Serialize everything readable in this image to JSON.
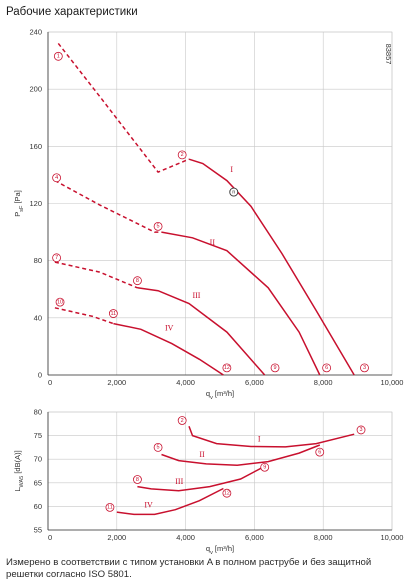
{
  "title": "Рабочие характеристики",
  "footnote": "Измерено в соответствии с типом установки A в полном раструбе и без защитной решетки согласно ISO 5801.",
  "image_code": "83857",
  "colors": {
    "curve": "#c8102e",
    "grid": "#c8c8c8",
    "axis": "#333333"
  },
  "chart_data": [
    {
      "type": "line",
      "title": "",
      "ylabel": "P_sF [Pa]",
      "xlabel": "q_v [m³/h]",
      "xlim": [
        0,
        10000
      ],
      "ylim": [
        0,
        240
      ],
      "x_ticks": [
        "0",
        "2,000",
        "4,000",
        "6,000",
        "8,000",
        "10,000"
      ],
      "y_ticks": [
        "0",
        "40",
        "80",
        "120",
        "160",
        "200",
        "240"
      ],
      "grid": true,
      "series": [
        {
          "name": "I",
          "segments": [
            {
              "style": "dashed",
              "points": [
                [
                  300,
                  232
                ],
                [
                  1500,
                  195
                ],
                [
                  3200,
                  142
                ],
                [
                  3700,
                  147
                ],
                [
                  4100,
                  151
                ]
              ]
            },
            {
              "style": "solid",
              "points": [
                [
                  4100,
                  151
                ],
                [
                  4500,
                  148
                ],
                [
                  5200,
                  136
                ],
                [
                  5900,
                  118
                ],
                [
                  6800,
                  85
                ],
                [
                  7800,
                  45
                ],
                [
                  8900,
                  0
                ]
              ]
            }
          ]
        },
        {
          "name": "II",
          "segments": [
            {
              "style": "dashed",
              "points": [
                [
                  200,
                  136
                ],
                [
                  1500,
                  119
                ],
                [
                  3100,
                  100
                ],
                [
                  3300,
                  100
                ]
              ]
            },
            {
              "style": "solid",
              "points": [
                [
                  3300,
                  100
                ],
                [
                  4200,
                  96
                ],
                [
                  5200,
                  87
                ],
                [
                  6400,
                  61
                ],
                [
                  7300,
                  30
                ],
                [
                  7900,
                  0
                ]
              ]
            }
          ]
        },
        {
          "name": "III",
          "segments": [
            {
              "style": "dashed",
              "points": [
                [
                  200,
                  79
                ],
                [
                  1500,
                  72
                ],
                [
                  2500,
                  62
                ],
                [
                  2600,
                  61
                ]
              ]
            },
            {
              "style": "solid",
              "points": [
                [
                  2600,
                  61
                ],
                [
                  3200,
                  59
                ],
                [
                  4100,
                  50
                ],
                [
                  5200,
                  30
                ],
                [
                  6300,
                  0
                ]
              ]
            }
          ]
        },
        {
          "name": "IV",
          "segments": [
            {
              "style": "dashed",
              "points": [
                [
                  200,
                  47
                ],
                [
                  1300,
                  41
                ],
                [
                  1900,
                  36
                ]
              ]
            },
            {
              "style": "solid",
              "points": [
                [
                  1900,
                  36
                ],
                [
                  2700,
                  32
                ],
                [
                  3600,
                  22
                ],
                [
                  4400,
                  11
                ],
                [
                  5100,
                  0
                ]
              ]
            }
          ]
        }
      ],
      "roman_labels": [
        {
          "text": "I",
          "x": 5300,
          "y": 142
        },
        {
          "text": "II",
          "x": 4700,
          "y": 91
        },
        {
          "text": "III",
          "x": 4200,
          "y": 54
        },
        {
          "text": "IV",
          "x": 3400,
          "y": 31
        }
      ],
      "markers": [
        {
          "label": "1",
          "x": 300,
          "y": 223
        },
        {
          "label": "2",
          "x": 3900,
          "y": 154
        },
        {
          "label": "3",
          "x": 9200,
          "y": 5
        },
        {
          "label": "4",
          "x": 250,
          "y": 138
        },
        {
          "label": "5",
          "x": 3200,
          "y": 104
        },
        {
          "label": "6",
          "x": 8100,
          "y": 5
        },
        {
          "label": "7",
          "x": 250,
          "y": 82
        },
        {
          "label": "8",
          "x": 2600,
          "y": 66
        },
        {
          "label": "9",
          "x": 6600,
          "y": 5
        },
        {
          "label": "10",
          "x": 350,
          "y": 51
        },
        {
          "label": "11",
          "x": 1900,
          "y": 43
        },
        {
          "label": "12",
          "x": 5200,
          "y": 5
        }
      ],
      "operating_point": {
        "label": "n",
        "x": 5400,
        "y": 128
      }
    },
    {
      "type": "line",
      "title": "",
      "ylabel": "L_WA5 [dB(A)]",
      "xlabel": "q_v [m³/h]",
      "xlim": [
        0,
        10000
      ],
      "ylim": [
        55,
        80
      ],
      "x_ticks": [
        "0",
        "2,000",
        "4,000",
        "6,000",
        "8,000",
        "10,000"
      ],
      "y_ticks": [
        "55",
        "60",
        "65",
        "70",
        "75",
        "80"
      ],
      "grid": true,
      "series": [
        {
          "name": "I",
          "points": [
            [
              4100,
              77
            ],
            [
              4200,
              75
            ],
            [
              4900,
              73.3
            ],
            [
              5900,
              72.7
            ],
            [
              6900,
              72.6
            ],
            [
              7800,
              73.3
            ],
            [
              8900,
              75.3
            ]
          ]
        },
        {
          "name": "II",
          "points": [
            [
              3300,
              71
            ],
            [
              3800,
              69.7
            ],
            [
              4600,
              69
            ],
            [
              5500,
              68.7
            ],
            [
              6400,
              69.5
            ],
            [
              7300,
              71.3
            ],
            [
              7900,
              73
            ]
          ]
        },
        {
          "name": "III",
          "points": [
            [
              2600,
              64.2
            ],
            [
              3000,
              63.7
            ],
            [
              3800,
              63.3
            ],
            [
              4700,
              64.2
            ],
            [
              5600,
              65.8
            ],
            [
              6300,
              68.5
            ]
          ]
        },
        {
          "name": "IV",
          "points": [
            [
              2000,
              58.8
            ],
            [
              2500,
              58.3
            ],
            [
              3100,
              58.3
            ],
            [
              3700,
              59.3
            ],
            [
              4400,
              61.2
            ],
            [
              5100,
              63.8
            ]
          ]
        }
      ],
      "roman_labels": [
        {
          "text": "I",
          "x": 6100,
          "y": 73.7
        },
        {
          "text": "II",
          "x": 4400,
          "y": 70.5
        },
        {
          "text": "III",
          "x": 3700,
          "y": 64.7
        },
        {
          "text": "IV",
          "x": 2800,
          "y": 59.8
        }
      ],
      "markers": [
        {
          "label": "2",
          "x": 3900,
          "y": 78.2
        },
        {
          "label": "3",
          "x": 9100,
          "y": 76.2
        },
        {
          "label": "5",
          "x": 3200,
          "y": 72.5
        },
        {
          "label": "6",
          "x": 7900,
          "y": 71.5
        },
        {
          "label": "8",
          "x": 2600,
          "y": 65.7
        },
        {
          "label": "9",
          "x": 6300,
          "y": 68.3
        },
        {
          "label": "11",
          "x": 1800,
          "y": 59.8
        },
        {
          "label": "12",
          "x": 5200,
          "y": 62.8
        }
      ]
    }
  ]
}
